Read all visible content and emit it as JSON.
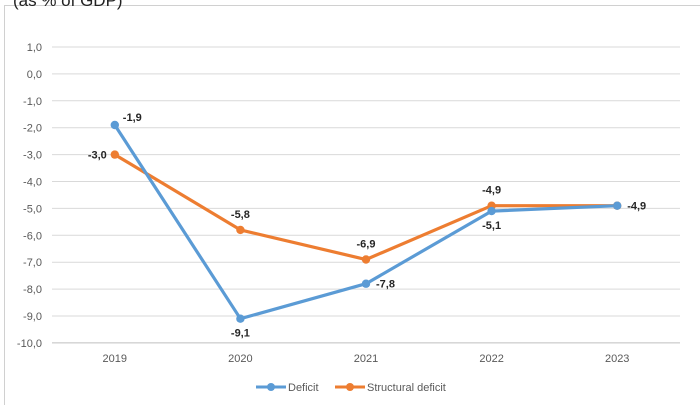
{
  "subtitle": "(as % of GDP)",
  "chart_data": {
    "type": "line",
    "title": "",
    "subtitle": "(as % of GDP)",
    "categories": [
      "2019",
      "2020",
      "2021",
      "2022",
      "2023"
    ],
    "series": [
      {
        "name": "Deficit",
        "color": "#5b9bd5",
        "values": [
          -1.9,
          -9.1,
          -7.8,
          -5.1,
          -4.9
        ],
        "labels": [
          "-1,9",
          "-9,1",
          "-7,8",
          "-5,1",
          ""
        ]
      },
      {
        "name": "Structural deficit",
        "color": "#ed7d31",
        "values": [
          -3.0,
          -5.8,
          -6.9,
          -4.9,
          -4.9
        ],
        "labels": [
          "-3,0",
          "-5,8",
          "-6,9",
          "-4,9",
          "-4,9"
        ]
      }
    ],
    "ylim": [
      -10,
      1
    ],
    "yticks": [
      1,
      0,
      -1,
      -2,
      -3,
      -4,
      -5,
      -6,
      -7,
      -8,
      -9,
      -10
    ],
    "ytick_labels": [
      "1,0",
      "0,0",
      "-1,0",
      "-2,0",
      "-3,0",
      "-4,0",
      "-5,0",
      "-6,0",
      "-7,0",
      "-8,0",
      "-9,0",
      "-10,0"
    ],
    "grid": true,
    "legend": "bottom"
  }
}
